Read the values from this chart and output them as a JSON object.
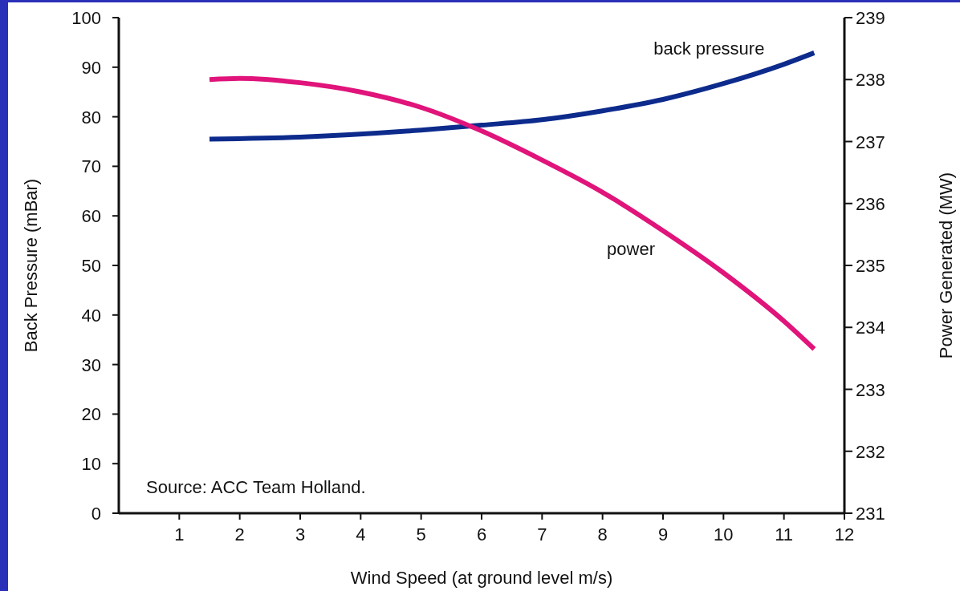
{
  "chart_data": {
    "type": "line",
    "xlabel": "Wind Speed (at ground level m/s)",
    "ylabel": "Back Pressure (mBar)",
    "y2label": "Power Generated (MW)",
    "annotations": [
      "Source: ACC Team Holland."
    ],
    "xlim": [
      0,
      12
    ],
    "xticks": [
      1,
      2,
      3,
      4,
      5,
      6,
      7,
      8,
      9,
      10,
      11,
      12
    ],
    "ylim": [
      0,
      100
    ],
    "yticks": [
      0,
      10,
      20,
      30,
      40,
      50,
      60,
      70,
      80,
      90,
      100
    ],
    "y2lim": [
      231,
      239
    ],
    "y2ticks": [
      231,
      232,
      233,
      234,
      235,
      236,
      237,
      238,
      239
    ],
    "grid": false,
    "series": [
      {
        "name": "back pressure",
        "color": "#0d2b8c",
        "x": [
          1.5,
          3,
          5,
          6,
          7,
          8,
          9,
          10,
          11,
          11.5
        ],
        "values": [
          75.5,
          75.9,
          77.3,
          78.3,
          79.4,
          81.2,
          83.5,
          86.7,
          90.6,
          92.9
        ]
      },
      {
        "name": "power",
        "color": "#e0147a",
        "axis": "y2",
        "x": [
          1.5,
          2,
          3,
          4,
          5,
          6,
          7,
          8,
          9,
          10,
          11,
          11.5
        ],
        "values": [
          238.0,
          238.02,
          237.95,
          237.8,
          237.55,
          237.17,
          236.7,
          236.18,
          235.56,
          234.88,
          234.1,
          233.65
        ]
      }
    ]
  }
}
